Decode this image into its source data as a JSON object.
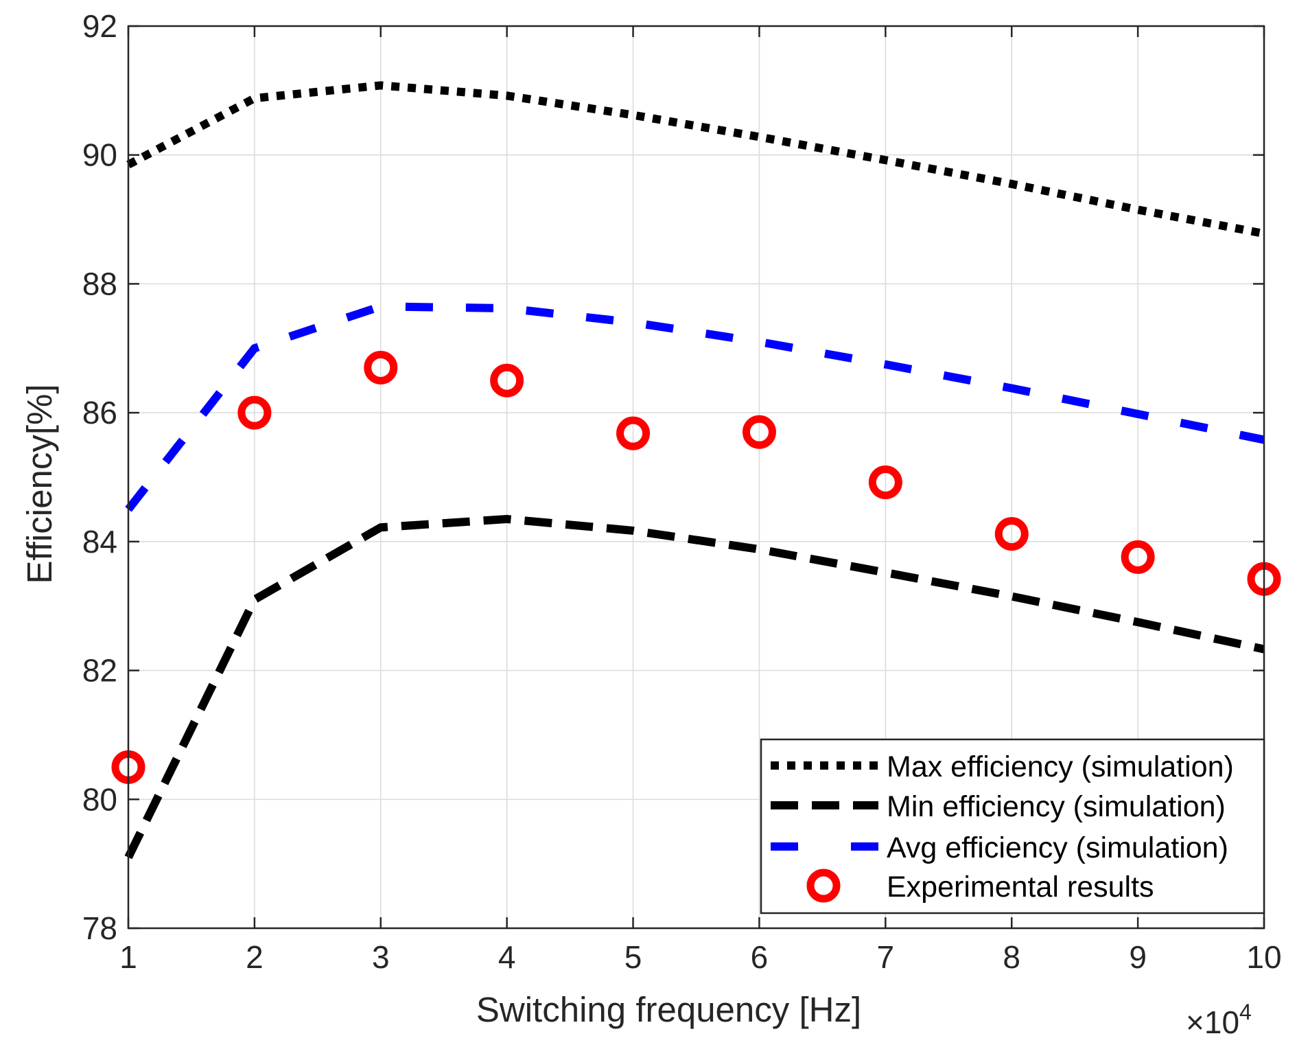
{
  "chart_data": {
    "type": "line",
    "title": "",
    "xlabel": "Switching frequency [Hz]",
    "ylabel": "Efficiency[%]",
    "x_multiplier_label": "×10",
    "x_multiplier_exponent": "4",
    "xlim": [
      1,
      10
    ],
    "ylim": [
      78,
      92
    ],
    "xticks": [
      1,
      2,
      3,
      4,
      5,
      6,
      7,
      8,
      9,
      10
    ],
    "yticks": [
      78,
      80,
      82,
      84,
      86,
      88,
      90,
      92
    ],
    "grid": true,
    "legend_position": "bottom-right",
    "x": [
      1,
      2,
      3,
      4,
      5,
      6,
      7,
      8,
      9,
      10
    ],
    "series": [
      {
        "name": "Max efficiency (simulation)",
        "style": "dotted",
        "color": "#000000",
        "values": [
          89.85,
          90.88,
          91.08,
          90.92,
          90.62,
          90.28,
          89.92,
          89.55,
          89.15,
          88.78
        ]
      },
      {
        "name": "Min efficiency (simulation)",
        "style": "dashed",
        "color": "#000000",
        "values": [
          79.1,
          83.1,
          84.22,
          84.35,
          84.17,
          83.88,
          83.52,
          83.15,
          82.75,
          82.33
        ]
      },
      {
        "name": "Avg efficiency (simulation)",
        "style": "dashed-long",
        "color": "#0000ff",
        "values": [
          84.5,
          87.0,
          87.65,
          87.62,
          87.4,
          87.1,
          86.75,
          86.38,
          85.98,
          85.58
        ]
      },
      {
        "name": "Experimental results",
        "style": "marker-circle",
        "color": "#ff0000",
        "values": [
          80.5,
          86.0,
          86.7,
          86.5,
          85.68,
          85.7,
          84.92,
          84.12,
          83.76,
          83.42
        ]
      }
    ]
  }
}
